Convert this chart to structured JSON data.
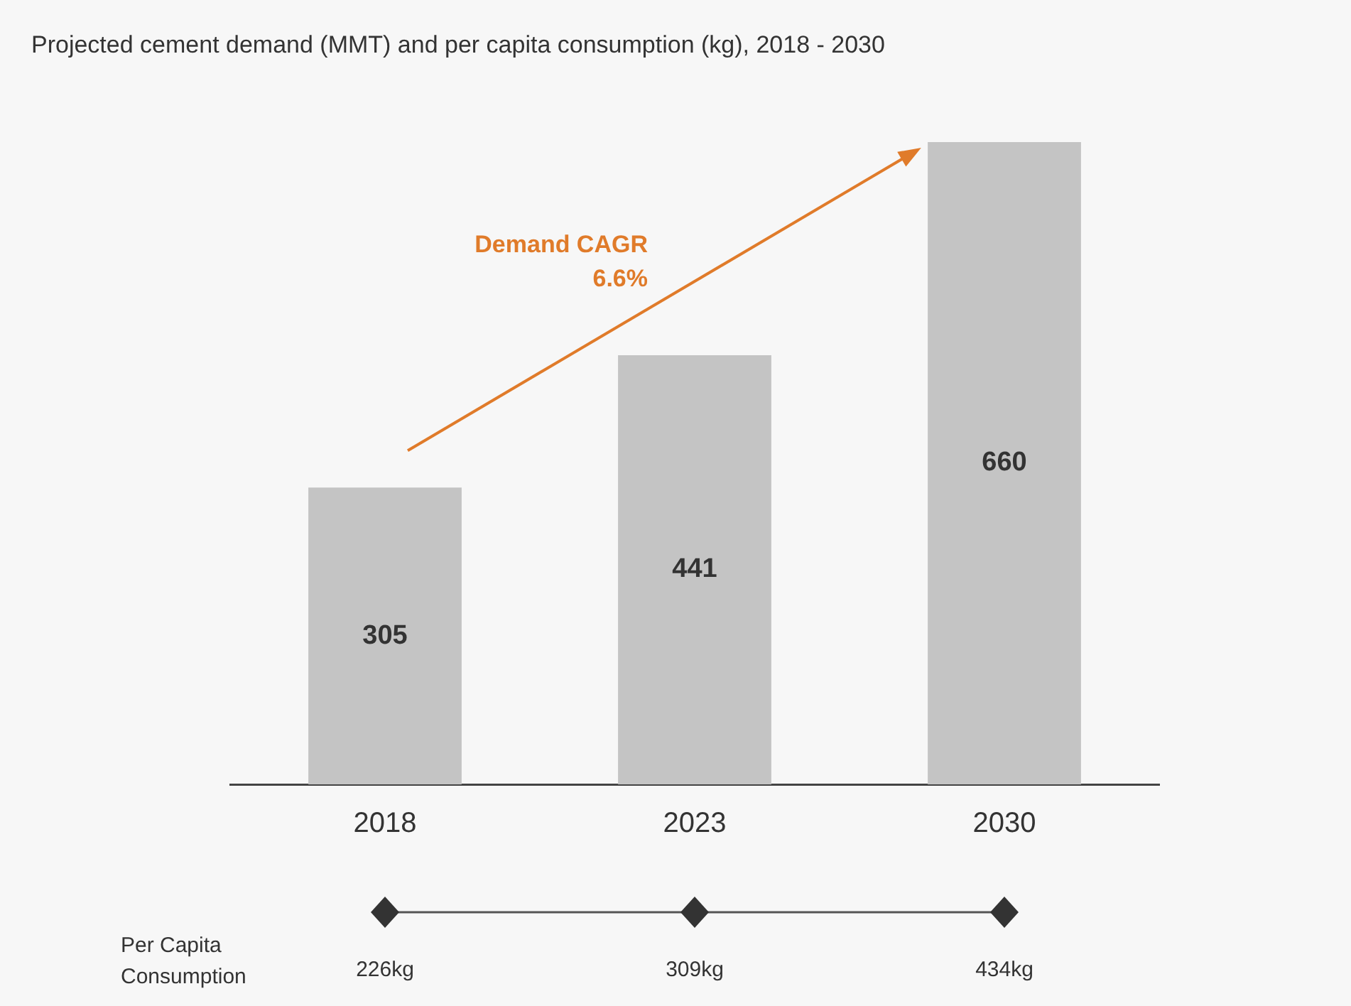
{
  "chart_data": {
    "type": "bar",
    "title": "Projected cement demand (MMT) and per capita consumption (kg), 2018 - 2030",
    "categories": [
      "2018",
      "2023",
      "2030"
    ],
    "values": [
      305,
      441,
      660
    ],
    "color": "#c4c4c4",
    "data_labels": true,
    "annotations": [
      "Demand CAGR 6.6%",
      "Per Capita Consumption",
      "226kg",
      "309kg",
      "434kg"
    ]
  }
}
